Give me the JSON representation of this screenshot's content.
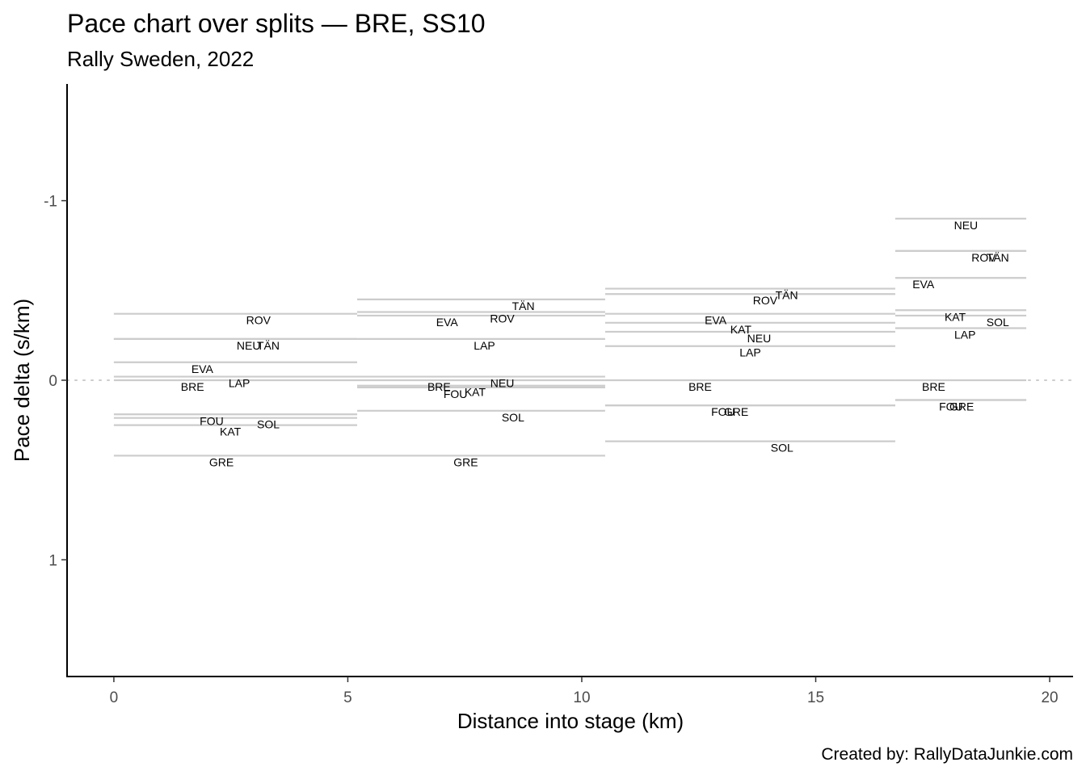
{
  "chart_data": {
    "type": "line",
    "title": "Pace chart over splits — BRE, SS10",
    "subtitle": "Rally Sweden, 2022",
    "xlabel": "Distance into stage (km)",
    "ylabel": "Pace delta (s/km)",
    "caption": "Created by: RallyDataJunkie.com",
    "xlim": [
      -1,
      20.5
    ],
    "ylim": [
      1.65,
      -1.65
    ],
    "y_reversed": true,
    "x_ticks": [
      0,
      5,
      10,
      15,
      20
    ],
    "y_ticks": [
      -1,
      0,
      1
    ],
    "reference_line": 0,
    "splits": [
      {
        "start": 0,
        "end": 5.2,
        "label_x": 2.5,
        "entries": [
          {
            "driver": "ROV",
            "delta": -0.37,
            "label_x": 3.09
          },
          {
            "driver": "TÄN",
            "delta": -0.23,
            "label_x": 3.3
          },
          {
            "driver": "NEU",
            "delta": -0.23,
            "label_x": 2.88
          },
          {
            "driver": "EVA",
            "delta": -0.1,
            "label_x": 1.89
          },
          {
            "driver": "LAP",
            "delta": -0.02,
            "label_x": 2.68
          },
          {
            "driver": "BRE",
            "delta": 0,
            "label_x": 1.68
          },
          {
            "driver": "FOU",
            "delta": 0.19,
            "label_x": 2.09
          },
          {
            "driver": "SOL",
            "delta": 0.21,
            "label_x": 3.3
          },
          {
            "driver": "KAT",
            "delta": 0.25,
            "label_x": 2.49
          },
          {
            "driver": "GRE",
            "delta": 0.42,
            "label_x": 2.3
          }
        ]
      },
      {
        "start": 5.2,
        "end": 10.5,
        "label_x": 7.8,
        "entries": [
          {
            "driver": "TÄN",
            "delta": -0.45,
            "label_x": 8.75
          },
          {
            "driver": "ROV",
            "delta": -0.38,
            "label_x": 8.3
          },
          {
            "driver": "EVA",
            "delta": -0.36,
            "label_x": 7.12
          },
          {
            "driver": "LAP",
            "delta": -0.23,
            "label_x": 7.92
          },
          {
            "driver": "NEU",
            "delta": -0.02,
            "label_x": 8.3
          },
          {
            "driver": "BRE",
            "delta": 0,
            "label_x": 6.95
          },
          {
            "driver": "KAT",
            "delta": 0.03,
            "label_x": 7.72
          },
          {
            "driver": "FOU",
            "delta": 0.04,
            "label_x": 7.3
          },
          {
            "driver": "SOL",
            "delta": 0.17,
            "label_x": 8.53
          },
          {
            "driver": "GRE",
            "delta": 0.42,
            "label_x": 7.52
          }
        ]
      },
      {
        "start": 10.5,
        "end": 16.7,
        "label_x": 13.5,
        "entries": [
          {
            "driver": "TÄN",
            "delta": -0.51,
            "label_x": 14.38
          },
          {
            "driver": "ROV",
            "delta": -0.48,
            "label_x": 13.92
          },
          {
            "driver": "EVA",
            "delta": -0.37,
            "label_x": 12.86
          },
          {
            "driver": "KAT",
            "delta": -0.32,
            "label_x": 13.4
          },
          {
            "driver": "NEU",
            "delta": -0.27,
            "label_x": 13.79
          },
          {
            "driver": "LAP",
            "delta": -0.19,
            "label_x": 13.6
          },
          {
            "driver": "BRE",
            "delta": 0,
            "label_x": 12.53
          },
          {
            "driver": "FOU",
            "delta": 0.14,
            "label_x": 13.02
          },
          {
            "driver": "GRE",
            "delta": 0.14,
            "label_x": 13.3
          },
          {
            "driver": "SOL",
            "delta": 0.34,
            "label_x": 14.28
          }
        ]
      },
      {
        "start": 16.7,
        "end": 19.5,
        "label_x": 18.1,
        "entries": [
          {
            "driver": "NEU",
            "delta": -0.9,
            "label_x": 18.21
          },
          {
            "driver": "TÄN",
            "delta": -0.72,
            "label_x": 18.89
          },
          {
            "driver": "ROV",
            "delta": -0.72,
            "label_x": 18.59
          },
          {
            "driver": "EVA",
            "delta": -0.57,
            "label_x": 17.3
          },
          {
            "driver": "KAT",
            "delta": -0.39,
            "label_x": 17.98
          },
          {
            "driver": "SOL",
            "delta": -0.36,
            "label_x": 18.89
          },
          {
            "driver": "LAP",
            "delta": -0.29,
            "label_x": 18.19
          },
          {
            "driver": "BRE",
            "delta": 0,
            "label_x": 17.52
          },
          {
            "driver": "FOU",
            "delta": 0.11,
            "label_x": 17.89
          },
          {
            "driver": "GRE",
            "delta": 0.11,
            "label_x": 18.12
          }
        ]
      }
    ],
    "colors": {
      "segment": "#cccccc",
      "zero_line": "#cccccc",
      "axis": "#000000",
      "tick_text": "#4d4d4d"
    }
  }
}
